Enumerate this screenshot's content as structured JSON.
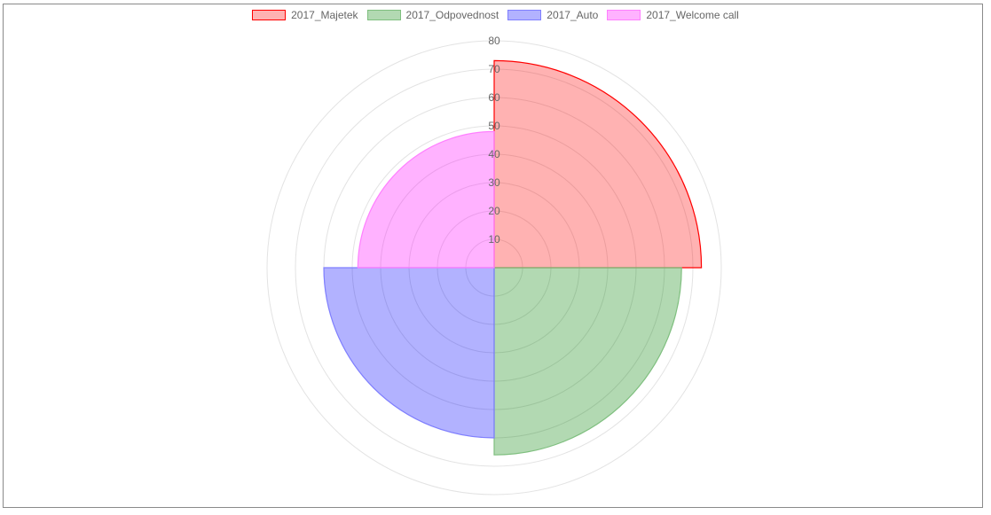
{
  "chart_data": {
    "type": "polarArea",
    "categories": [
      "2017_Majetek",
      "2017_Odpovednost",
      "2017_Auto",
      "2017_Welcome call"
    ],
    "values": [
      73,
      66,
      60,
      48
    ],
    "series_colors": [
      {
        "fill": "rgba(255,0,0,0.3)",
        "border": "#ff0000"
      },
      {
        "fill": "rgba(0,128,0,0.3)",
        "border": "#7fbf7f"
      },
      {
        "fill": "rgba(0,0,255,0.3)",
        "border": "#7f7fff"
      },
      {
        "fill": "rgba(255,0,255,0.3)",
        "border": "#ff7fff"
      }
    ],
    "rlim": [
      0,
      80
    ],
    "ticks": [
      "10",
      "20",
      "30",
      "40",
      "50",
      "60",
      "70",
      "80"
    ],
    "grid": true,
    "legend_position": "top",
    "title": ""
  }
}
